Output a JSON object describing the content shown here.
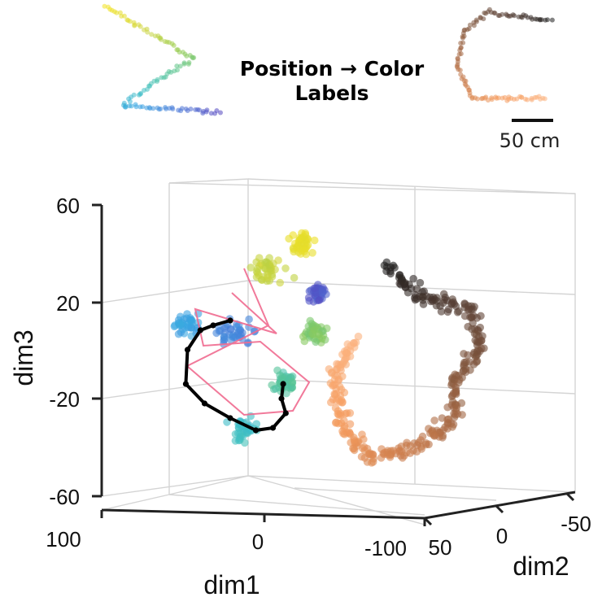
{
  "legend": {
    "title_line1": "Position → Color",
    "title_line2": "Labels",
    "scale_bar_label": "50 cm"
  },
  "chart_data": {
    "type": "scatter",
    "subtype": "3d-embedding-with-trajectory",
    "title": "",
    "axes": {
      "x": {
        "label": "dim1",
        "ticks": [
          "100",
          "0",
          "-100"
        ],
        "range": [
          100,
          -100
        ]
      },
      "y": {
        "label": "dim2",
        "ticks": [
          "50",
          "0",
          "-50"
        ],
        "range": [
          50,
          -50
        ]
      },
      "z": {
        "label": "dim3",
        "ticks": [
          "60",
          "20",
          "-20",
          "-60"
        ],
        "range": [
          -60,
          60
        ]
      }
    },
    "grid": true,
    "colors": {
      "maze_arm_gradient": [
        "#f2e21f",
        "#d4d63a",
        "#9ccc4c",
        "#5cc48a",
        "#3fc0c4",
        "#39a6e2",
        "#4a78d8",
        "#5548c0"
      ],
      "track_gradient": [
        "#fcb380",
        "#f49a5c",
        "#c77a4b",
        "#8a5a3e",
        "#5a4136",
        "#1e1e1e"
      ],
      "trajectory": "#000000",
      "decoded_path": "#f06a8f"
    },
    "series": [
      {
        "name": "",
        "cluster": "maze-embedding",
        "approx_points": 320
      },
      {
        "name": "",
        "cluster": "track-embedding",
        "approx_points": 420
      }
    ],
    "trajectory": {
      "dim1": [
        40,
        60,
        75,
        90,
        92,
        70,
        40,
        10,
        -10,
        -25,
        -20,
        -22
      ],
      "dim3": [
        12,
        10,
        8,
        0,
        -14,
        -22,
        -28,
        -33,
        -32,
        -26,
        -20,
        -14
      ]
    }
  }
}
